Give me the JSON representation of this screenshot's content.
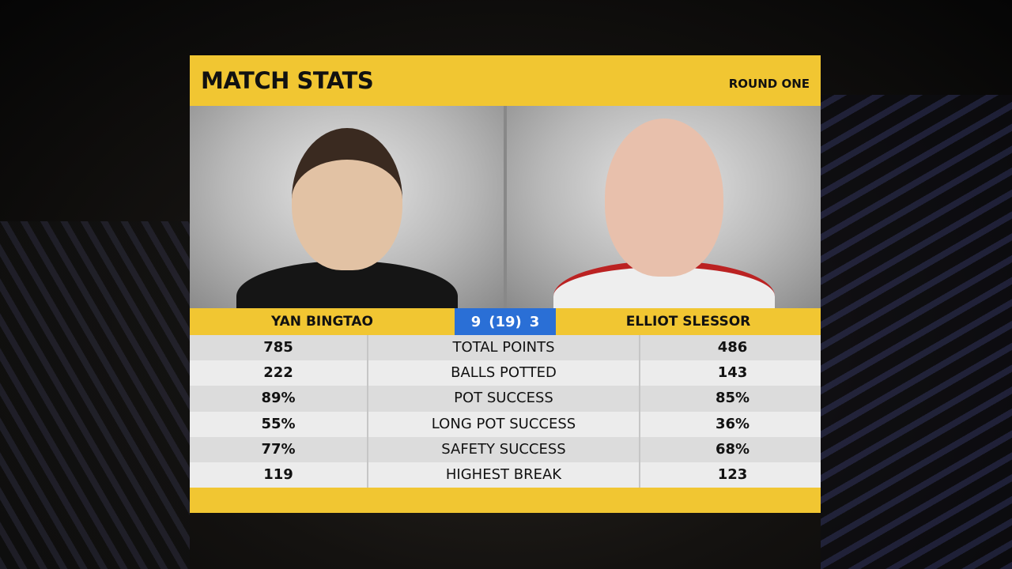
{
  "header": {
    "title": "MATCH STATS",
    "round": "ROUND ONE"
  },
  "players": {
    "left": "YAN BINGTAO",
    "right": "ELLIOT SLESSOR"
  },
  "score": {
    "left": "9",
    "frames": "(19)",
    "right": "3"
  },
  "colors": {
    "accent": "#f1c632",
    "score_bg": "#2a6fd6"
  },
  "stats": [
    {
      "left": "785",
      "label": "TOTAL POINTS",
      "right": "486"
    },
    {
      "left": "222",
      "label": "BALLS POTTED",
      "right": "143"
    },
    {
      "left": "89%",
      "label": "POT SUCCESS",
      "right": "85%"
    },
    {
      "left": "55%",
      "label": "LONG POT SUCCESS",
      "right": "36%"
    },
    {
      "left": "77%",
      "label": "SAFETY SUCCESS",
      "right": "68%"
    },
    {
      "left": "119",
      "label": "HIGHEST BREAK",
      "right": "123"
    }
  ]
}
